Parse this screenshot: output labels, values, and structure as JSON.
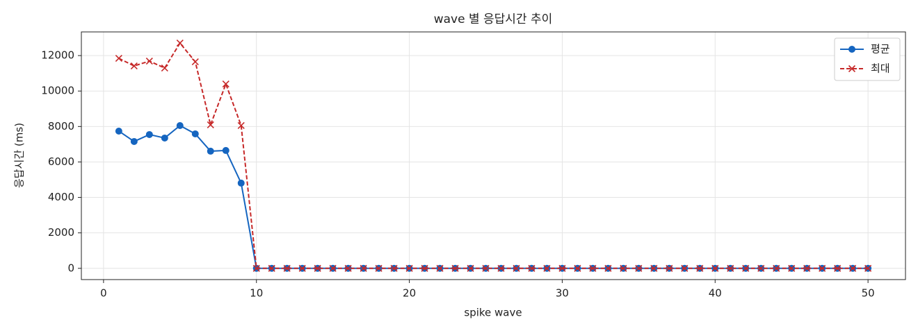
{
  "chart_data": {
    "type": "line",
    "title": "wave 별 응답시간 추이",
    "xlabel": "spike wave",
    "ylabel": "응답시간 (ms)",
    "x": [
      1,
      2,
      3,
      4,
      5,
      6,
      7,
      8,
      9,
      10,
      11,
      12,
      13,
      14,
      15,
      16,
      17,
      18,
      19,
      20,
      21,
      22,
      23,
      24,
      25,
      26,
      27,
      28,
      29,
      30,
      31,
      32,
      33,
      34,
      35,
      36,
      37,
      38,
      39,
      40,
      41,
      42,
      43,
      44,
      45,
      46,
      47,
      48,
      49,
      50
    ],
    "series": [
      {
        "name": "평균",
        "color": "#1565c0",
        "marker": "o",
        "dashed": false,
        "values": [
          7740,
          7154,
          7545,
          7350,
          8053,
          7584,
          6607,
          6646,
          4808,
          0,
          0,
          0,
          0,
          0,
          0,
          0,
          0,
          0,
          0,
          0,
          0,
          0,
          0,
          0,
          0,
          0,
          0,
          0,
          0,
          0,
          0,
          0,
          0,
          0,
          0,
          0,
          0,
          0,
          0,
          0,
          0,
          0,
          0,
          0,
          0,
          0,
          0,
          0,
          0,
          0
        ]
      },
      {
        "name": "최대",
        "color": "#c62828",
        "marker": "x",
        "dashed": true,
        "values": [
          11845,
          11415,
          11689,
          11298,
          12705,
          11650,
          8092,
          10399,
          8053,
          0,
          0,
          0,
          0,
          0,
          0,
          0,
          0,
          0,
          0,
          0,
          0,
          0,
          0,
          0,
          0,
          0,
          0,
          0,
          0,
          0,
          0,
          0,
          0,
          0,
          0,
          0,
          0,
          0,
          0,
          0,
          0,
          0,
          0,
          0,
          0,
          0,
          0,
          0,
          0,
          0
        ]
      }
    ],
    "xlim": [
      -1.45,
      52.45
    ],
    "ylim": [
      -635,
      13335
    ],
    "xticks": [
      0,
      10,
      20,
      30,
      40,
      50
    ],
    "yticks": [
      0,
      2000,
      4000,
      6000,
      8000,
      10000,
      12000
    ],
    "grid": true,
    "legend": "upper right"
  }
}
